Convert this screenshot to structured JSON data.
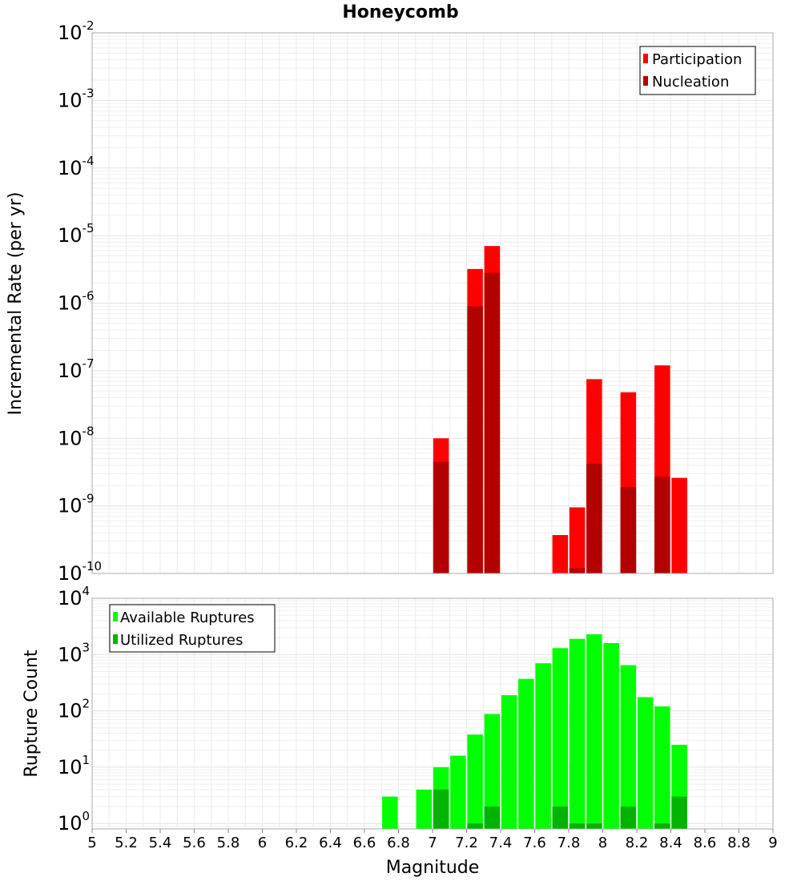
{
  "chart_data": [
    {
      "type": "bar",
      "title": "Honeycomb",
      "xlabel": "Magnitude",
      "ylabel": "Incremental Rate (per yr)",
      "yscale": "log",
      "ylim": [
        1e-10,
        0.01
      ],
      "xlim": [
        5,
        9
      ],
      "grid": true,
      "legend_position": "top-right",
      "x_tick_labels": [
        "5",
        "5.2",
        "5.4",
        "5.6",
        "5.8",
        "6",
        "6.2",
        "6.4",
        "6.6",
        "6.8",
        "7",
        "7.2",
        "7.4",
        "7.6",
        "7.8",
        "8",
        "8.2",
        "8.4",
        "8.6",
        "8.8",
        "9"
      ],
      "y_tick_labels": [
        {
          "base": "10",
          "exp": "-10"
        },
        {
          "base": "10",
          "exp": "-9"
        },
        {
          "base": "10",
          "exp": "-8"
        },
        {
          "base": "10",
          "exp": "-7"
        },
        {
          "base": "10",
          "exp": "-6"
        },
        {
          "base": "10",
          "exp": "-5"
        },
        {
          "base": "10",
          "exp": "-4"
        },
        {
          "base": "10",
          "exp": "-3"
        },
        {
          "base": "10",
          "exp": "-2"
        }
      ],
      "series": [
        {
          "name": "Participation",
          "color": "#ff0000",
          "x": [
            7.05,
            7.25,
            7.35,
            7.75,
            7.85,
            7.95,
            8.15,
            8.35,
            8.45
          ],
          "values": [
            1e-08,
            3.2e-06,
            7e-06,
            3.7e-10,
            9.5e-10,
            7.5e-08,
            4.8e-08,
            1.2e-07,
            2.6e-09
          ]
        },
        {
          "name": "Nucleation",
          "color": "#b30000",
          "x": [
            7.05,
            7.25,
            7.35,
            7.85,
            7.95,
            8.15,
            8.35
          ],
          "values": [
            4.5e-09,
            9e-07,
            2.8e-06,
            1.2e-10,
            4.2e-09,
            1.9e-09,
            2.7e-09
          ]
        }
      ]
    },
    {
      "type": "bar",
      "title": "",
      "xlabel": "Magnitude",
      "ylabel": "Rupture Count",
      "yscale": "log",
      "ylim": [
        0.8,
        10000
      ],
      "xlim": [
        5,
        9
      ],
      "grid": true,
      "legend_position": "top-left",
      "y_tick_labels": [
        {
          "base": "10",
          "exp": "0"
        },
        {
          "base": "10",
          "exp": "1"
        },
        {
          "base": "10",
          "exp": "2"
        },
        {
          "base": "10",
          "exp": "3"
        },
        {
          "base": "10",
          "exp": "4"
        }
      ],
      "series": [
        {
          "name": "Available Ruptures",
          "color": "#00ff00",
          "x": [
            6.75,
            6.95,
            7.05,
            7.15,
            7.25,
            7.35,
            7.45,
            7.55,
            7.65,
            7.75,
            7.85,
            7.95,
            8.05,
            8.15,
            8.25,
            8.35,
            8.45
          ],
          "values": [
            3,
            4,
            10,
            16,
            38,
            88,
            190,
            370,
            700,
            1300,
            1900,
            2300,
            1600,
            650,
            175,
            120,
            25
          ]
        },
        {
          "name": "Utilized Ruptures",
          "color": "#00b300",
          "x": [
            7.05,
            7.25,
            7.35,
            7.75,
            7.85,
            7.95,
            8.15,
            8.35,
            8.45
          ],
          "values": [
            4,
            1,
            2,
            2,
            1,
            1,
            2,
            1,
            3
          ]
        }
      ]
    }
  ]
}
